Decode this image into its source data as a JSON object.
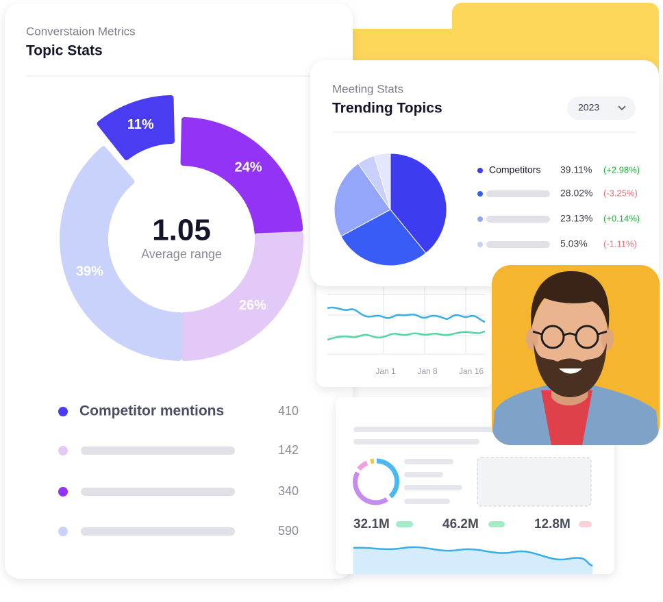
{
  "topic_stats": {
    "subtitle": "Converstaion Metrics",
    "title": "Topic Stats",
    "center_value": "1.05",
    "center_label": "Average range",
    "legend": {
      "labels": [
        "Competitor mentions",
        null,
        null,
        null
      ],
      "values": [
        410,
        142,
        340,
        590
      ],
      "colors": [
        "#4a3cf0",
        "#e2c9f8",
        "#9333f5",
        "#c9d2fa"
      ]
    }
  },
  "trending_topics": {
    "subtitle": "Meeting Stats",
    "title": "Trending Topics",
    "year": "2023",
    "changes": [
      2.98,
      -3.25,
      0.14,
      -1.11
    ],
    "change_labels": [
      "(+2.98%)",
      "(-3.25%)",
      "(+0.14%)",
      "(-1.11%)"
    ]
  },
  "activity_card": {
    "x_labels": [
      "Jan 1",
      "Jan 8",
      "Jan 16"
    ]
  },
  "summary_card": {
    "stats": [
      "32.1M",
      "46.2M",
      "12.8M"
    ]
  },
  "chart_data": [
    {
      "type": "donut",
      "values": [
        24,
        26,
        39,
        11
      ],
      "value_labels": [
        "24%",
        "26%",
        "39%",
        "11%"
      ],
      "colors": [
        "#9333f5",
        "#e2c9f8",
        "#c9d2fa",
        "#4a3cf0"
      ]
    },
    {
      "type": "pie",
      "categories": [
        "Competitors",
        null,
        null,
        null
      ],
      "values": [
        39.11,
        28.02,
        23.13,
        5.03
      ],
      "value_labels": [
        "39.11%",
        "28.02%",
        "23.13%",
        "5.03%"
      ],
      "colors": [
        "#3d3cf0",
        "#3a5cf6",
        "#93a6f9",
        "#c8cffb"
      ]
    }
  ]
}
